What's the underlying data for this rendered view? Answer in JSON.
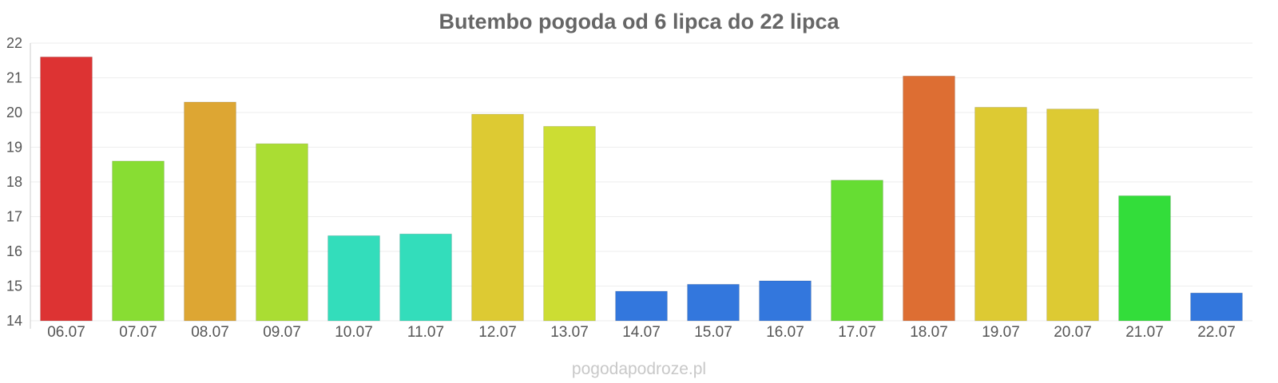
{
  "chart_data": {
    "type": "bar",
    "title": "Butembo pogoda od 6 lipca do 22 lipca",
    "xlabel": "",
    "ylabel": "",
    "ylim": [
      14,
      22
    ],
    "yticks": [
      14,
      15,
      16,
      17,
      18,
      19,
      20,
      21,
      22
    ],
    "grid": true,
    "categories": [
      "06.07",
      "07.07",
      "08.07",
      "09.07",
      "10.07",
      "11.07",
      "12.07",
      "13.07",
      "14.07",
      "15.07",
      "16.07",
      "17.07",
      "18.07",
      "19.07",
      "20.07",
      "21.07",
      "22.07"
    ],
    "values": [
      21.6,
      18.6,
      20.3,
      19.1,
      16.45,
      16.5,
      19.95,
      19.6,
      14.85,
      15.05,
      15.15,
      18.05,
      21.05,
      20.15,
      20.1,
      17.6,
      14.8
    ],
    "colors": [
      "#dd3333",
      "#88dd33",
      "#dda633",
      "#aadd33",
      "#33ddbb",
      "#33ddbb",
      "#ddca33",
      "#ccdd33",
      "#3377dd",
      "#3377dd",
      "#3377dd",
      "#66dd33",
      "#dd6e33",
      "#ddca33",
      "#ddca33",
      "#33dd3a",
      "#3377dd"
    ]
  },
  "footer": {
    "watermark": "pogodapodroze.pl"
  }
}
